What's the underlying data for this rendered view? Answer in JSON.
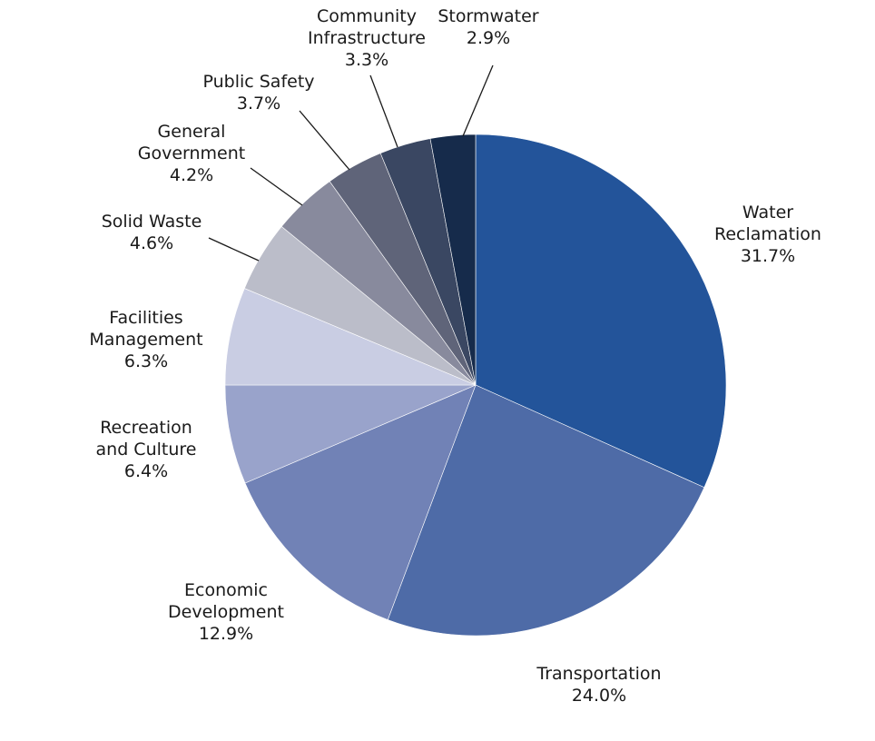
{
  "chart_data": {
    "type": "pie",
    "start": "top",
    "direction": "clockwise",
    "slices": [
      {
        "label": [
          "Water",
          "Reclamation"
        ],
        "value": 31.7,
        "value_label": "31.7%",
        "color": "#23549a"
      },
      {
        "label": [
          "Transportation"
        ],
        "value": 24.0,
        "value_label": "24.0%",
        "color": "#4e6ba7"
      },
      {
        "label": [
          "Economic",
          "Development"
        ],
        "value": 12.9,
        "value_label": "12.9%",
        "color": "#7182b6"
      },
      {
        "label": [
          "Recreation",
          "and Culture"
        ],
        "value": 6.4,
        "value_label": "6.4%",
        "color": "#99a3cb"
      },
      {
        "label": [
          "Facilities",
          "Management"
        ],
        "value": 6.3,
        "value_label": "6.3%",
        "color": "#c9cde3"
      },
      {
        "label": [
          "Solid Waste"
        ],
        "value": 4.6,
        "value_label": "4.6%",
        "color": "#bbbdc9"
      },
      {
        "label": [
          "General",
          "Government"
        ],
        "value": 4.2,
        "value_label": "4.2%",
        "color": "#888a9d"
      },
      {
        "label": [
          "Public Safety"
        ],
        "value": 3.7,
        "value_label": "3.7%",
        "color": "#5f6479"
      },
      {
        "label": [
          "Community",
          "Infrastructure"
        ],
        "value": 3.3,
        "value_label": "3.3%",
        "color": "#3a4762"
      },
      {
        "label": [
          "Stormwater"
        ],
        "value": 2.9,
        "value_label": "2.9%",
        "color": "#162b4b"
      }
    ]
  }
}
